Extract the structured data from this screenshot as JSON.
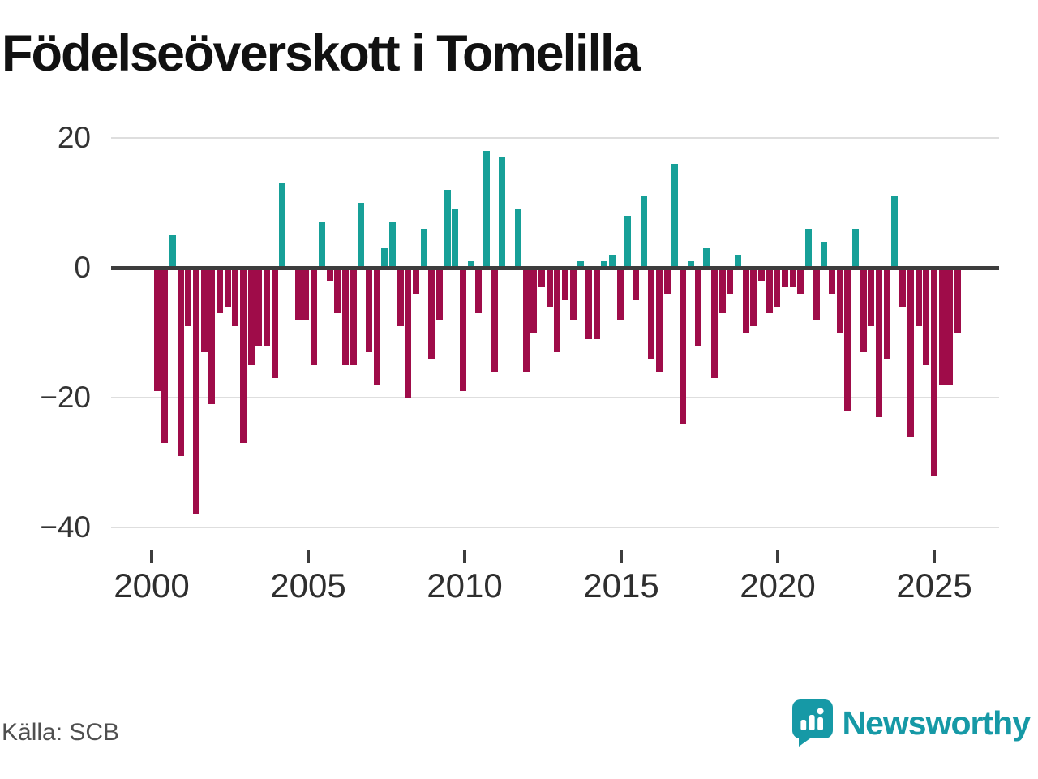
{
  "title": "Födelseöverskott i Tomelilla",
  "source": "Källa: SCB",
  "logo": {
    "text": "Newsworthy"
  },
  "chart_data": {
    "type": "bar",
    "title": "Födelseöverskott i Tomelilla",
    "xlabel": "",
    "ylabel": "",
    "frequency": "quarterly",
    "start_year": 2000,
    "start_quarter": 1,
    "end_year": 2025,
    "end_quarter": 3,
    "ylim": [
      -40,
      20
    ],
    "y_ticks": [
      20,
      0,
      -20,
      -40
    ],
    "x_ticks": [
      2000,
      2005,
      2010,
      2015,
      2020,
      2025
    ],
    "grid": true,
    "legend": false,
    "positive_color": "#17a098",
    "negative_color": "#9f0c49",
    "values": [
      -19,
      -27,
      5,
      -29,
      -9,
      -38,
      -13,
      -21,
      -7,
      -6,
      -9,
      -27,
      -15,
      -12,
      -12,
      -17,
      13,
      0,
      -8,
      -8,
      -15,
      7,
      -2,
      -7,
      -15,
      -15,
      10,
      -13,
      -18,
      3,
      7,
      -9,
      -20,
      -4,
      6,
      -14,
      -8,
      12,
      9,
      -19,
      1,
      -7,
      18,
      -16,
      17,
      0,
      9,
      -16,
      -10,
      -3,
      -6,
      -13,
      -5,
      -8,
      1,
      -11,
      -11,
      1,
      2,
      -8,
      8,
      -5,
      11,
      -14,
      -16,
      -4,
      16,
      -24,
      1,
      -12,
      3,
      -17,
      -7,
      -4,
      2,
      -10,
      -9,
      -2,
      -7,
      -6,
      -3,
      -3,
      -4,
      6,
      -8,
      4,
      -4,
      -10,
      -22,
      6,
      -13,
      -9,
      -23,
      -14,
      11,
      -6,
      -26,
      -9,
      -15,
      -32,
      -18,
      -18,
      -10
    ]
  }
}
